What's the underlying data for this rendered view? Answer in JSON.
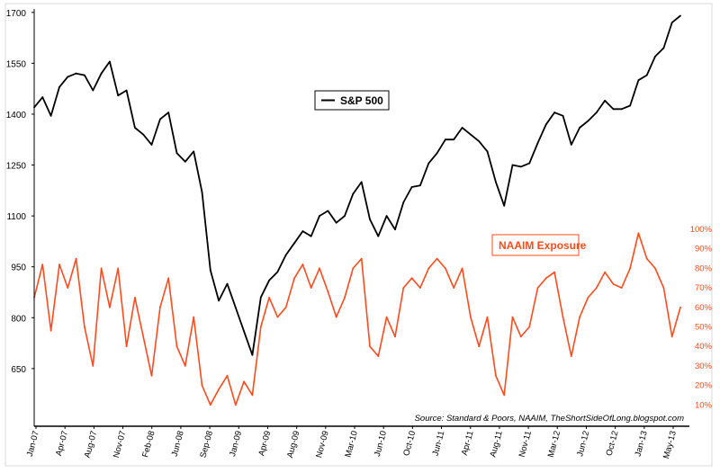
{
  "chart_data": {
    "type": "line",
    "title": "",
    "x_tick_labels": [
      "Jan-07",
      "Apr-07",
      "Aug-07",
      "Nov-07",
      "Feb-08",
      "Jun-08",
      "Sep-08",
      "Jan-09",
      "Apr-09",
      "Aug-09",
      "Nov-09",
      "Mar-10",
      "Jun-10",
      "Oct-10",
      "Jun-11",
      "Apr-11",
      "Aug-11",
      "Nov-11",
      "Mar-12",
      "Jun-12",
      "Oct-12",
      "Jan-13",
      "May-13"
    ],
    "x_range": [
      "2007-01",
      "2013-06"
    ],
    "y_left": {
      "ticks": [
        650,
        800,
        950,
        1100,
        1250,
        1400,
        1550,
        1700
      ],
      "range": [
        480,
        1710
      ]
    },
    "y_right": {
      "ticks": [
        "10%",
        "20%",
        "30%",
        "40%",
        "50%",
        "60%",
        "70%",
        "80%",
        "90%",
        "100%"
      ],
      "range": [
        0,
        100
      ]
    },
    "series": [
      {
        "name": "S&P 500",
        "axis": "left",
        "color": "#000000",
        "values": [
          [
            "2007-01",
            1420
          ],
          [
            "2007-02",
            1450
          ],
          [
            "2007-03",
            1395
          ],
          [
            "2007-04",
            1480
          ],
          [
            "2007-05",
            1510
          ],
          [
            "2007-06",
            1520
          ],
          [
            "2007-07",
            1515
          ],
          [
            "2007-08",
            1470
          ],
          [
            "2007-09",
            1520
          ],
          [
            "2007-10",
            1555
          ],
          [
            "2007-11",
            1455
          ],
          [
            "2007-12",
            1470
          ],
          [
            "2008-01",
            1360
          ],
          [
            "2008-02",
            1340
          ],
          [
            "2008-03",
            1310
          ],
          [
            "2008-04",
            1385
          ],
          [
            "2008-05",
            1405
          ],
          [
            "2008-06",
            1285
          ],
          [
            "2008-07",
            1260
          ],
          [
            "2008-08",
            1290
          ],
          [
            "2008-09",
            1170
          ],
          [
            "2008-10",
            940
          ],
          [
            "2008-11",
            850
          ],
          [
            "2008-12",
            900
          ],
          [
            "2009-01",
            830
          ],
          [
            "2009-02",
            760
          ],
          [
            "2009-03",
            690
          ],
          [
            "2009-04",
            860
          ],
          [
            "2009-05",
            910
          ],
          [
            "2009-06",
            935
          ],
          [
            "2009-07",
            985
          ],
          [
            "2009-08",
            1020
          ],
          [
            "2009-09",
            1055
          ],
          [
            "2009-10",
            1040
          ],
          [
            "2009-11",
            1100
          ],
          [
            "2009-12",
            1115
          ],
          [
            "2010-01",
            1080
          ],
          [
            "2010-02",
            1100
          ],
          [
            "2010-03",
            1165
          ],
          [
            "2010-04",
            1200
          ],
          [
            "2010-05",
            1090
          ],
          [
            "2010-06",
            1040
          ],
          [
            "2010-07",
            1100
          ],
          [
            "2010-08",
            1060
          ],
          [
            "2010-09",
            1140
          ],
          [
            "2010-10",
            1185
          ],
          [
            "2010-11",
            1190
          ],
          [
            "2010-12",
            1255
          ],
          [
            "2011-01",
            1285
          ],
          [
            "2011-02",
            1325
          ],
          [
            "2011-03",
            1325
          ],
          [
            "2011-04",
            1360
          ],
          [
            "2011-05",
            1340
          ],
          [
            "2011-06",
            1320
          ],
          [
            "2011-07",
            1290
          ],
          [
            "2011-08",
            1200
          ],
          [
            "2011-09",
            1130
          ],
          [
            "2011-10",
            1250
          ],
          [
            "2011-11",
            1245
          ],
          [
            "2011-12",
            1255
          ],
          [
            "2012-01",
            1315
          ],
          [
            "2012-02",
            1370
          ],
          [
            "2012-03",
            1405
          ],
          [
            "2012-04",
            1395
          ],
          [
            "2012-05",
            1310
          ],
          [
            "2012-06",
            1360
          ],
          [
            "2012-07",
            1380
          ],
          [
            "2012-08",
            1405
          ],
          [
            "2012-09",
            1440
          ],
          [
            "2012-10",
            1415
          ],
          [
            "2012-11",
            1415
          ],
          [
            "2012-12",
            1425
          ],
          [
            "2013-01",
            1500
          ],
          [
            "2013-02",
            1515
          ],
          [
            "2013-03",
            1570
          ],
          [
            "2013-04",
            1595
          ],
          [
            "2013-05",
            1670
          ],
          [
            "2013-06",
            1690
          ]
        ]
      },
      {
        "name": "NAAIM Exposure",
        "axis": "right",
        "color": "#ff4a1c",
        "values": [
          [
            "2007-01",
            65
          ],
          [
            "2007-02",
            82
          ],
          [
            "2007-03",
            48
          ],
          [
            "2007-04",
            82
          ],
          [
            "2007-05",
            70
          ],
          [
            "2007-06",
            85
          ],
          [
            "2007-07",
            50
          ],
          [
            "2007-08",
            30
          ],
          [
            "2007-09",
            80
          ],
          [
            "2007-10",
            60
          ],
          [
            "2007-11",
            80
          ],
          [
            "2007-12",
            40
          ],
          [
            "2008-01",
            65
          ],
          [
            "2008-02",
            45
          ],
          [
            "2008-03",
            25
          ],
          [
            "2008-04",
            60
          ],
          [
            "2008-05",
            75
          ],
          [
            "2008-06",
            40
          ],
          [
            "2008-07",
            30
          ],
          [
            "2008-08",
            55
          ],
          [
            "2008-09",
            20
          ],
          [
            "2008-10",
            10
          ],
          [
            "2008-11",
            18
          ],
          [
            "2008-12",
            25
          ],
          [
            "2009-01",
            10
          ],
          [
            "2009-02",
            22
          ],
          [
            "2009-03",
            15
          ],
          [
            "2009-04",
            50
          ],
          [
            "2009-05",
            65
          ],
          [
            "2009-06",
            55
          ],
          [
            "2009-07",
            60
          ],
          [
            "2009-08",
            75
          ],
          [
            "2009-09",
            82
          ],
          [
            "2009-10",
            70
          ],
          [
            "2009-11",
            80
          ],
          [
            "2009-12",
            68
          ],
          [
            "2010-01",
            55
          ],
          [
            "2010-02",
            65
          ],
          [
            "2010-03",
            80
          ],
          [
            "2010-04",
            85
          ],
          [
            "2010-05",
            40
          ],
          [
            "2010-06",
            35
          ],
          [
            "2010-07",
            55
          ],
          [
            "2010-08",
            45
          ],
          [
            "2010-09",
            70
          ],
          [
            "2010-10",
            75
          ],
          [
            "2010-11",
            70
          ],
          [
            "2010-12",
            80
          ],
          [
            "2011-01",
            85
          ],
          [
            "2011-02",
            80
          ],
          [
            "2011-03",
            70
          ],
          [
            "2011-04",
            80
          ],
          [
            "2011-05",
            55
          ],
          [
            "2011-06",
            40
          ],
          [
            "2011-07",
            55
          ],
          [
            "2011-08",
            25
          ],
          [
            "2011-09",
            15
          ],
          [
            "2011-10",
            55
          ],
          [
            "2011-11",
            45
          ],
          [
            "2011-12",
            50
          ],
          [
            "2012-01",
            70
          ],
          [
            "2012-02",
            75
          ],
          [
            "2012-03",
            78
          ],
          [
            "2012-04",
            55
          ],
          [
            "2012-05",
            35
          ],
          [
            "2012-06",
            55
          ],
          [
            "2012-07",
            65
          ],
          [
            "2012-08",
            70
          ],
          [
            "2012-09",
            78
          ],
          [
            "2012-10",
            72
          ],
          [
            "2012-11",
            70
          ],
          [
            "2012-12",
            80
          ],
          [
            "2013-01",
            98
          ],
          [
            "2013-02",
            85
          ],
          [
            "2013-03",
            80
          ],
          [
            "2013-04",
            70
          ],
          [
            "2013-05",
            45
          ],
          [
            "2013-06",
            60
          ]
        ]
      }
    ],
    "legend": [
      {
        "label": "S&P 500",
        "color": "#000000",
        "placement": "upper-center"
      },
      {
        "label": "NAAIM Exposure",
        "color": "#ff4a1c",
        "placement": "center-right"
      }
    ],
    "source": "Source: Standard & Poors, NAAIM, TheShortSideOfLong.blogspot.com",
    "grid": false
  }
}
